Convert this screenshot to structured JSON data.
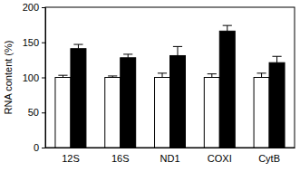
{
  "chart_data": {
    "type": "bar",
    "y_label": "RNA content (%)",
    "categories": [
      "12S",
      "16S",
      "ND1",
      "COXI",
      "CytB"
    ],
    "series": [
      {
        "color": "#ffffff",
        "values": [
          100,
          100,
          100,
          100,
          100
        ],
        "errors": [
          3,
          2,
          6,
          5,
          6
        ]
      },
      {
        "color": "#000000",
        "values": [
          141,
          128,
          131,
          166,
          121
        ],
        "errors": [
          6,
          5,
          13,
          8,
          9
        ]
      }
    ],
    "ylim": [
      0,
      200
    ],
    "yticks": [
      0,
      50,
      100,
      150,
      200
    ],
    "grid": false
  }
}
